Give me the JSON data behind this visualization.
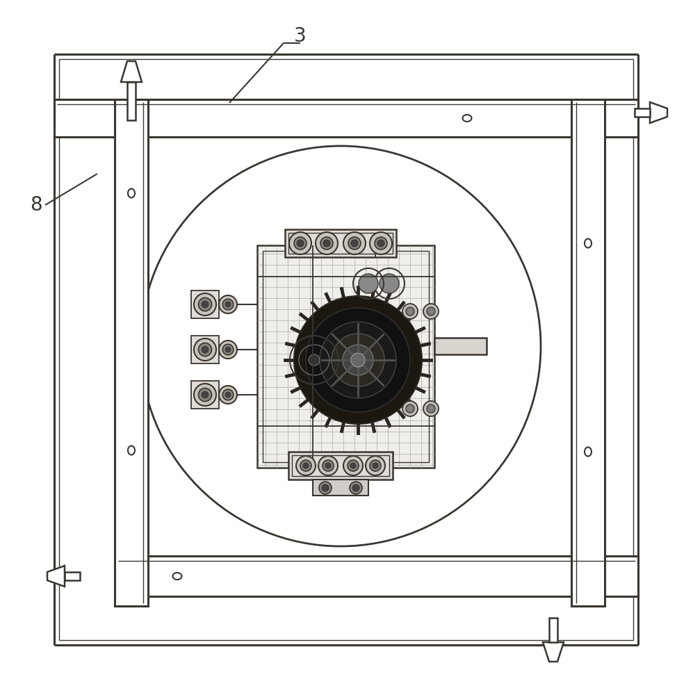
{
  "bg_color": "#ffffff",
  "line_color": "#3a3530",
  "fig_width": 9.97,
  "fig_height": 10.0,
  "dpi": 100,
  "label_3": "3",
  "label_8": "8"
}
